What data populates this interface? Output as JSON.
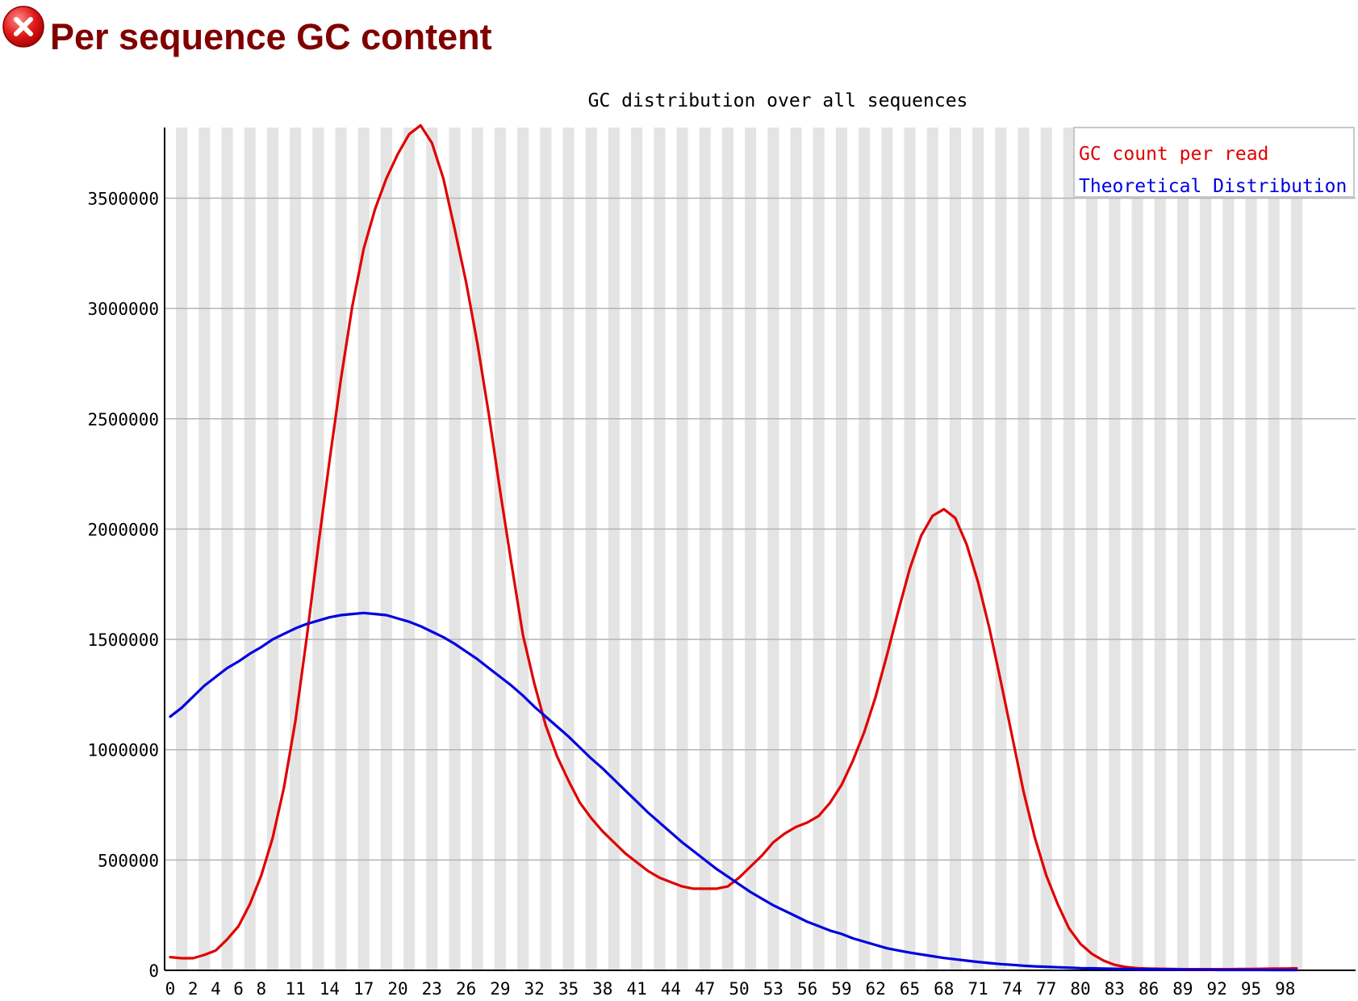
{
  "header": {
    "status_icon": "error-cross-icon",
    "title": "Per sequence GC content"
  },
  "colors": {
    "title": "#800000",
    "gc_count": "#e00000",
    "theoretical": "#0000e0",
    "stripe": "#e4e4e4",
    "grid": "#b4b4b4",
    "axis": "#000000",
    "text": "#000000"
  },
  "chart_data": {
    "type": "line",
    "title": "GC distribution over all sequences",
    "xlabel": "",
    "ylabel": "",
    "xlim": [
      0,
      100
    ],
    "ylim": [
      0,
      3820000
    ],
    "grid": "horizontal",
    "background": "alternating vertical stripes per GC column",
    "legend_position": "top-right",
    "x_tick_labels": [
      "0",
      "2",
      "4",
      "6",
      "8",
      "11",
      "14",
      "17",
      "20",
      "23",
      "26",
      "29",
      "32",
      "35",
      "38",
      "41",
      "44",
      "47",
      "50",
      "53",
      "56",
      "59",
      "62",
      "65",
      "68",
      "71",
      "74",
      "77",
      "80",
      "83",
      "86",
      "89",
      "92",
      "95",
      "98"
    ],
    "y_ticks": [
      0,
      500000,
      1000000,
      1500000,
      2000000,
      2500000,
      3000000,
      3500000
    ],
    "y_tick_labels": [
      "0",
      "500000",
      "1000000",
      "1500000",
      "2000000",
      "2500000",
      "3000000",
      "3500000"
    ],
    "x": [
      0,
      1,
      2,
      3,
      4,
      5,
      6,
      7,
      8,
      9,
      10,
      11,
      12,
      13,
      14,
      15,
      16,
      17,
      18,
      19,
      20,
      21,
      22,
      23,
      24,
      25,
      26,
      27,
      28,
      29,
      30,
      31,
      32,
      33,
      34,
      35,
      36,
      37,
      38,
      39,
      40,
      41,
      42,
      43,
      44,
      45,
      46,
      47,
      48,
      49,
      50,
      51,
      52,
      53,
      54,
      55,
      56,
      57,
      58,
      59,
      60,
      61,
      62,
      63,
      64,
      65,
      66,
      67,
      68,
      69,
      70,
      71,
      72,
      73,
      74,
      75,
      76,
      77,
      78,
      79,
      80,
      81,
      82,
      83,
      84,
      85,
      86,
      87,
      88,
      89,
      90,
      91,
      92,
      93,
      94,
      95,
      96,
      97,
      98,
      99,
      100
    ],
    "series": [
      {
        "name": "GC count per read",
        "color": "#e00000",
        "values": [
          60000,
          55000,
          55000,
          70000,
          90000,
          140000,
          200000,
          300000,
          430000,
          600000,
          830000,
          1130000,
          1510000,
          1920000,
          2310000,
          2680000,
          3010000,
          3270000,
          3450000,
          3590000,
          3700000,
          3790000,
          3830000,
          3750000,
          3590000,
          3360000,
          3120000,
          2840000,
          2520000,
          2170000,
          1840000,
          1520000,
          1300000,
          1110000,
          970000,
          860000,
          760000,
          690000,
          630000,
          580000,
          530000,
          490000,
          450000,
          420000,
          400000,
          380000,
          370000,
          370000,
          370000,
          380000,
          420000,
          470000,
          520000,
          580000,
          620000,
          650000,
          670000,
          700000,
          760000,
          840000,
          950000,
          1080000,
          1240000,
          1430000,
          1630000,
          1820000,
          1970000,
          2060000,
          2090000,
          2050000,
          1930000,
          1760000,
          1550000,
          1310000,
          1060000,
          810000,
          600000,
          430000,
          300000,
          190000,
          120000,
          75000,
          45000,
          25000,
          15000,
          10000,
          8000,
          7000,
          6000,
          5000,
          5000,
          5000,
          5000,
          5000,
          6000,
          6000,
          7000,
          8000,
          8000,
          9000,
          10000
        ]
      },
      {
        "name": "Theoretical Distribution",
        "color": "#0000e0",
        "values": [
          1150000,
          1190000,
          1240000,
          1290000,
          1330000,
          1370000,
          1400000,
          1435000,
          1465000,
          1500000,
          1525000,
          1550000,
          1570000,
          1585000,
          1600000,
          1610000,
          1615000,
          1620000,
          1615000,
          1610000,
          1595000,
          1580000,
          1560000,
          1535000,
          1510000,
          1480000,
          1445000,
          1410000,
          1370000,
          1330000,
          1290000,
          1245000,
          1195000,
          1150000,
          1105000,
          1060000,
          1010000,
          960000,
          915000,
          865000,
          815000,
          765000,
          715000,
          670000,
          625000,
          580000,
          540000,
          500000,
          460000,
          425000,
          390000,
          355000,
          325000,
          295000,
          270000,
          245000,
          220000,
          200000,
          180000,
          165000,
          145000,
          130000,
          115000,
          100000,
          90000,
          80000,
          72000,
          64000,
          56000,
          50000,
          44000,
          38000,
          33000,
          28000,
          25000,
          21000,
          18000,
          16000,
          14000,
          12000,
          10000,
          9000,
          8000,
          7000,
          6000,
          5000,
          5000,
          4000,
          4000,
          3000,
          3000,
          3000,
          2000,
          2000,
          2000,
          2000,
          2000,
          1000,
          1000,
          1000,
          1000
        ]
      }
    ]
  }
}
